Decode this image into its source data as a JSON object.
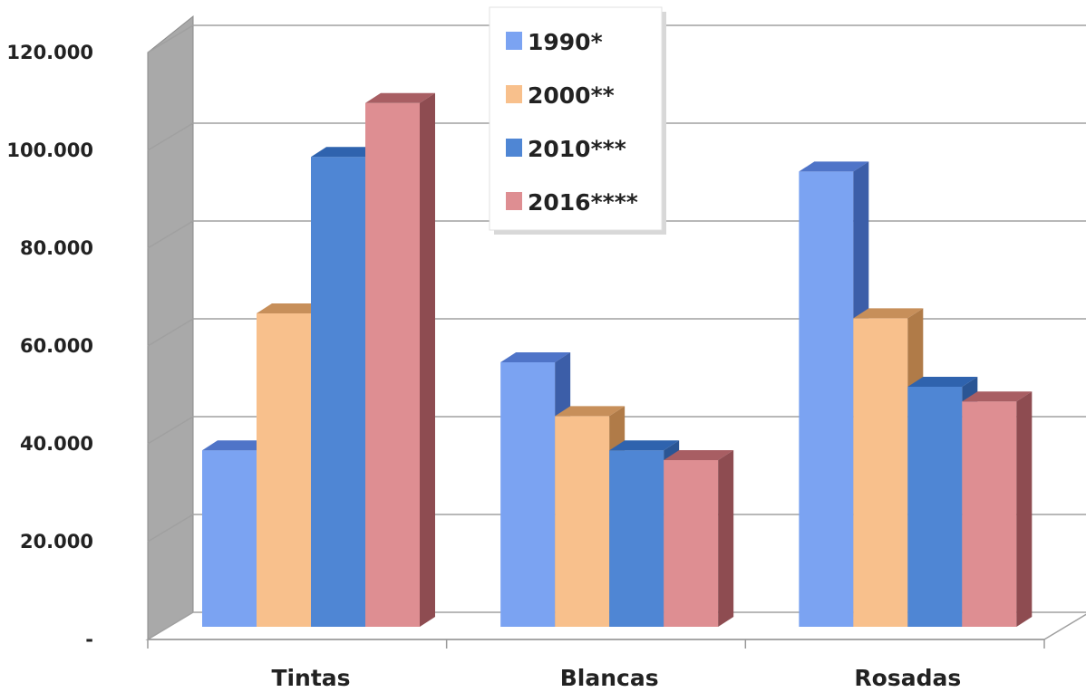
{
  "chart_data": {
    "type": "bar",
    "title": "",
    "xlabel": "",
    "ylabel": "",
    "categories": [
      "Tintas",
      "Blancas",
      "Rosadas"
    ],
    "series": [
      {
        "name": "1990*",
        "values": [
          42000,
          60000,
          99000
        ],
        "color": "#7BA3F2",
        "top_color": "#4F74C8",
        "side_color": "#3C5EA8"
      },
      {
        "name": "2000**",
        "values": [
          70000,
          49000,
          69000
        ],
        "color": "#F8C08C",
        "top_color": "#C78F5A",
        "side_color": "#B07B48"
      },
      {
        "name": "2010***",
        "values": [
          102000,
          42000,
          55000
        ],
        "color": "#4F86D4",
        "top_color": "#2F63AE",
        "side_color": "#2A5594"
      },
      {
        "name": "2016****",
        "values": [
          113000,
          40000,
          52000
        ],
        "color": "#DE8E92",
        "top_color": "#A85E63",
        "side_color": "#8E4C51"
      }
    ],
    "yticks": [
      "-",
      "20.000",
      "40.000",
      "60.000",
      "80.000",
      "100.000",
      "120.000"
    ],
    "ylim": [
      0,
      120000
    ],
    "grid": true,
    "legend_position": "top-center"
  }
}
